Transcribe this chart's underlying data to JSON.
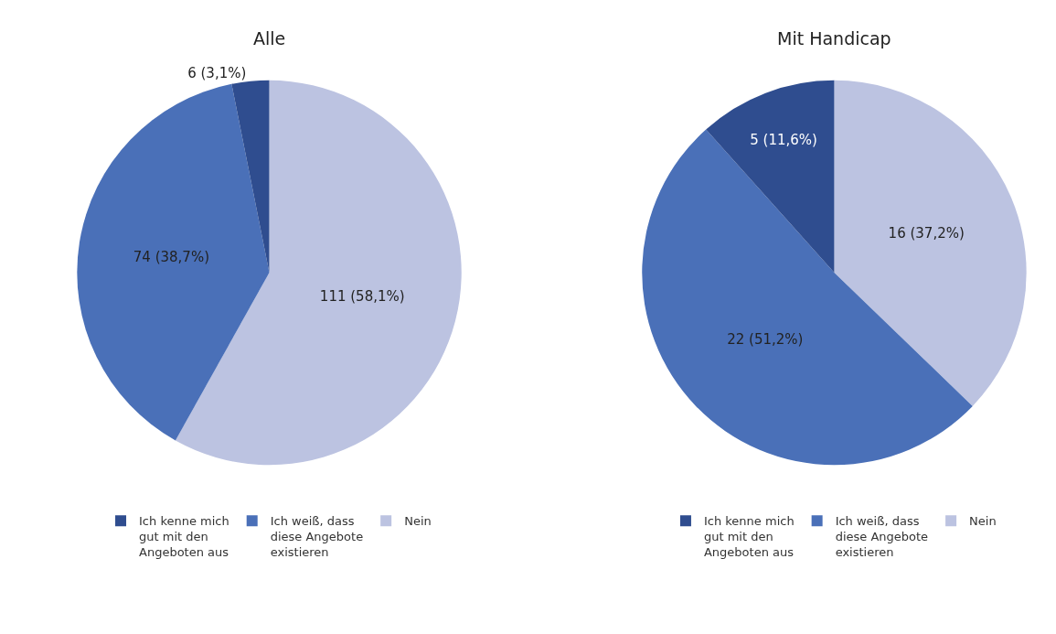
{
  "chart_data": [
    {
      "type": "pie",
      "title": "Alle",
      "categories": [
        "Ich kenne mich gut mit den Angeboten aus",
        "Ich weiß, dass diese Angebote existieren",
        "Nein"
      ],
      "values": [
        6,
        74,
        111
      ],
      "colors": [
        "#2f4d8f",
        "#4a70b8",
        "#bcc3e1"
      ],
      "value_labels": [
        "6 (3,1%)",
        "74 (38,7%)",
        "111 (58,1%)"
      ],
      "legend": "bottom"
    },
    {
      "type": "pie",
      "title": "Mit Handicap",
      "categories": [
        "Ich kenne mich gut mit den Angeboten aus",
        "Ich weiß, dass diese Angebote existieren",
        "Nein"
      ],
      "values": [
        5,
        22,
        16
      ],
      "colors": [
        "#2f4d8f",
        "#4a70b8",
        "#bcc3e1"
      ],
      "value_labels": [
        "5 (11,6%)",
        "22 (51,2%)",
        "16 (37,2%)"
      ],
      "legend": "bottom"
    }
  ]
}
